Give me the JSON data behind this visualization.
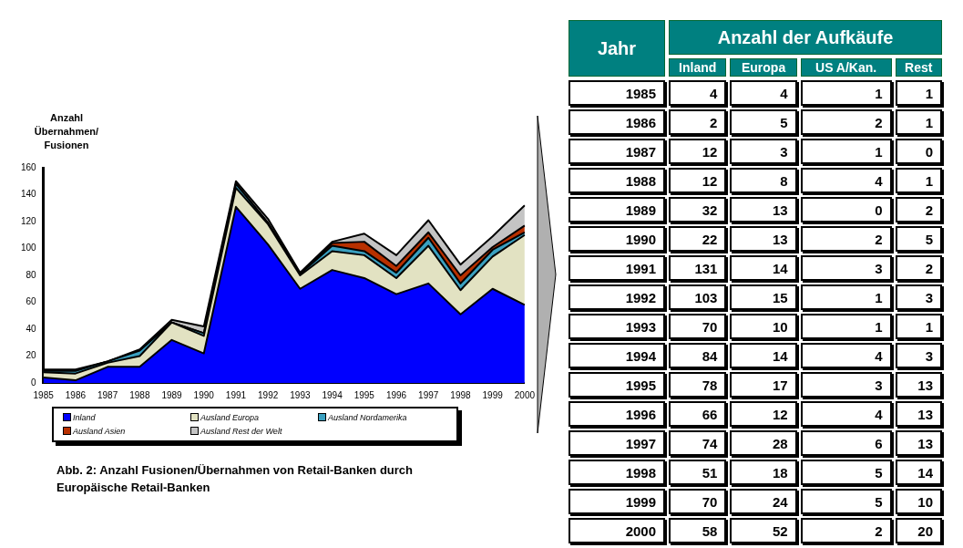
{
  "chart_data": [
    {
      "type": "area",
      "stacked": true,
      "title": "Abb. 2: Anzahl Fusionen/Übernahmen von Retail-Banken durch Europäische Retail-Banken",
      "ylabel": "Anzahl Übernahmen/ Fusionen",
      "categories": [
        "1985",
        "1986",
        "1987",
        "1988",
        "1989",
        "1990",
        "1991",
        "1992",
        "1993",
        "1994",
        "1995",
        "1996",
        "1997",
        "1998",
        "1999",
        "2000"
      ],
      "series": [
        {
          "name": "Inland",
          "color": "#0000ff",
          "values": [
            4,
            2,
            12,
            12,
            32,
            22,
            131,
            103,
            70,
            84,
            78,
            66,
            74,
            51,
            70,
            58
          ]
        },
        {
          "name": "Ausland Europa",
          "color": "#e2e2c2",
          "values": [
            4,
            5,
            3,
            8,
            13,
            13,
            14,
            15,
            10,
            14,
            17,
            12,
            28,
            18,
            24,
            52
          ]
        },
        {
          "name": "Ausland Nordamerika",
          "color": "#3aa0c0",
          "values": [
            1,
            2,
            1,
            4,
            0,
            2,
            3,
            1,
            1,
            4,
            3,
            4,
            6,
            5,
            5,
            2
          ]
        },
        {
          "name": "Ausland Asien",
          "color": "#b83000",
          "values": [
            0,
            0,
            0,
            0,
            0,
            0,
            0,
            0,
            0,
            2,
            7,
            5,
            4,
            6,
            2,
            5
          ]
        },
        {
          "name": "Ausland Rest der Welt",
          "color": "#c4c4c4",
          "values": [
            1,
            1,
            0,
            1,
            2,
            5,
            2,
            3,
            1,
            1,
            6,
            8,
            9,
            8,
            8,
            15
          ]
        }
      ],
      "ylim": [
        0,
        160
      ],
      "yticks": [
        0,
        20,
        40,
        60,
        80,
        100,
        120,
        140,
        160
      ],
      "grid": false,
      "legend": "bottom"
    },
    {
      "type": "heatmap",
      "title": "Anzahl der Aufkäufe",
      "ylabel": "Jahr",
      "data_labels": true,
      "categories": [
        "Inland",
        "Europa",
        "US A/Kan.",
        "Rest"
      ],
      "y_categories": [
        "1985",
        "1986",
        "1987",
        "1988",
        "1989",
        "1990",
        "1991",
        "1992",
        "1993",
        "1994",
        "1995",
        "1996",
        "1997",
        "1998",
        "1999",
        "2000"
      ],
      "cells": [
        [
          4,
          4,
          1,
          1
        ],
        [
          2,
          5,
          2,
          1
        ],
        [
          12,
          3,
          1,
          0
        ],
        [
          12,
          8,
          4,
          1
        ],
        [
          32,
          13,
          0,
          2
        ],
        [
          22,
          13,
          2,
          5
        ],
        [
          131,
          14,
          3,
          2
        ],
        [
          103,
          15,
          1,
          3
        ],
        [
          70,
          10,
          1,
          1
        ],
        [
          84,
          14,
          4,
          3
        ],
        [
          78,
          17,
          3,
          13
        ],
        [
          66,
          12,
          4,
          13
        ],
        [
          74,
          28,
          6,
          13
        ],
        [
          51,
          18,
          5,
          14
        ],
        [
          70,
          24,
          5,
          10
        ],
        [
          58,
          52,
          2,
          20
        ]
      ]
    }
  ]
}
